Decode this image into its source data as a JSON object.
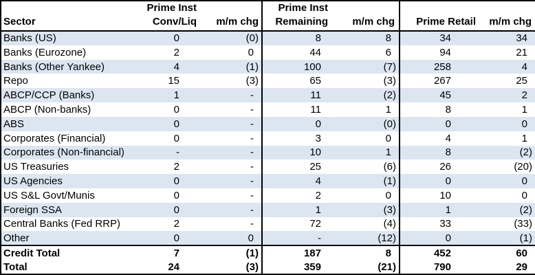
{
  "colors": {
    "row_alt_bg": "#DCE6F1",
    "border": "#000000",
    "background": "#FFFFFF",
    "text": "#000000"
  },
  "columns": {
    "sector": "Sector",
    "group1": {
      "line1": "Prime Inst",
      "line2": "Conv/Liq",
      "chg": "m/m chg"
    },
    "group2": {
      "line1": "Prime Inst",
      "line2": "Remaining",
      "chg": "m/m chg"
    },
    "group3": {
      "line1": "",
      "line2": "Prime Retail",
      "chg": "m/m chg"
    }
  },
  "rows": [
    {
      "sector": "Banks (US)",
      "values": [
        "0",
        "(0)",
        "8",
        "8",
        "34",
        "34"
      ]
    },
    {
      "sector": "Banks (Eurozone)",
      "values": [
        "2",
        "0",
        "44",
        "6",
        "94",
        "21"
      ]
    },
    {
      "sector": "Banks (Other Yankee)",
      "values": [
        "4",
        "(1)",
        "100",
        "(7)",
        "258",
        "4"
      ]
    },
    {
      "sector": "Repo",
      "values": [
        "15",
        "(3)",
        "65",
        "(3)",
        "267",
        "25"
      ]
    },
    {
      "sector": "ABCP/CCP (Banks)",
      "values": [
        "1",
        "-",
        "11",
        "(2)",
        "45",
        "2"
      ]
    },
    {
      "sector": "ABCP (Non-banks)",
      "values": [
        "0",
        "-",
        "11",
        "1",
        "8",
        "1"
      ]
    },
    {
      "sector": "ABS",
      "values": [
        "0",
        "-",
        "0",
        "(0)",
        "0",
        "0"
      ]
    },
    {
      "sector": "Corporates (Financial)",
      "values": [
        "0",
        "-",
        "3",
        "0",
        "4",
        "1"
      ]
    },
    {
      "sector": "Corporates (Non-financial)",
      "values": [
        "-",
        "-",
        "10",
        "1",
        "8",
        "(2)"
      ]
    },
    {
      "sector": "US Treasuries",
      "values": [
        "2",
        "-",
        "25",
        "(6)",
        "26",
        "(20)"
      ]
    },
    {
      "sector": "US Agencies",
      "values": [
        "0",
        "-",
        "4",
        "(1)",
        "0",
        "0"
      ]
    },
    {
      "sector": "US S&L Govt/Munis",
      "values": [
        "0",
        "-",
        "2",
        "0",
        "10",
        "0"
      ]
    },
    {
      "sector": "Foreign SSA",
      "values": [
        "0",
        "-",
        "1",
        "(3)",
        "1",
        "(2)"
      ]
    },
    {
      "sector": "Central Banks (Fed RRP)",
      "values": [
        "2",
        "-",
        "72",
        "(4)",
        "33",
        "(33)"
      ]
    },
    {
      "sector": "Other",
      "values": [
        "0",
        "0",
        "-",
        "(12)",
        "0",
        "(1)"
      ]
    }
  ],
  "totals": [
    {
      "sector": "Credit Total",
      "values": [
        "7",
        "(1)",
        "187",
        "8",
        "452",
        "60"
      ]
    },
    {
      "sector": "Total",
      "values": [
        "24",
        "(3)",
        "359",
        "(21)",
        "790",
        "29"
      ]
    }
  ],
  "chart_data": {
    "type": "table",
    "columns": [
      "Sector",
      "Prime Inst Conv/Liq",
      "m/m chg",
      "Prime Inst Remaining",
      "m/m chg",
      "Prime Retail",
      "m/m chg"
    ],
    "rows": [
      [
        "Banks (US)",
        0,
        "(0)",
        8,
        8,
        34,
        34
      ],
      [
        "Banks (Eurozone)",
        2,
        0,
        44,
        6,
        94,
        21
      ],
      [
        "Banks (Other Yankee)",
        4,
        "(1)",
        100,
        "(7)",
        258,
        4
      ],
      [
        "Repo",
        15,
        "(3)",
        65,
        "(3)",
        267,
        25
      ],
      [
        "ABCP/CCP (Banks)",
        1,
        "-",
        11,
        "(2)",
        45,
        2
      ],
      [
        "ABCP (Non-banks)",
        0,
        "-",
        11,
        1,
        8,
        1
      ],
      [
        "ABS",
        0,
        "-",
        0,
        "(0)",
        0,
        0
      ],
      [
        "Corporates (Financial)",
        0,
        "-",
        3,
        0,
        4,
        1
      ],
      [
        "Corporates (Non-financial)",
        "-",
        "-",
        10,
        1,
        8,
        "(2)"
      ],
      [
        "US Treasuries",
        2,
        "-",
        25,
        "(6)",
        26,
        "(20)"
      ],
      [
        "US Agencies",
        0,
        "-",
        4,
        "(1)",
        0,
        0
      ],
      [
        "US S&L Govt/Munis",
        0,
        "-",
        2,
        0,
        10,
        0
      ],
      [
        "Foreign SSA",
        0,
        "-",
        1,
        "(3)",
        1,
        "(2)"
      ],
      [
        "Central Banks (Fed RRP)",
        2,
        "-",
        72,
        "(4)",
        33,
        "(33)"
      ],
      [
        "Other",
        0,
        0,
        "-",
        "(12)",
        0,
        "(1)"
      ],
      [
        "Credit Total",
        7,
        "(1)",
        187,
        8,
        452,
        60
      ],
      [
        "Total",
        24,
        "(3)",
        359,
        "(21)",
        790,
        29
      ]
    ]
  }
}
